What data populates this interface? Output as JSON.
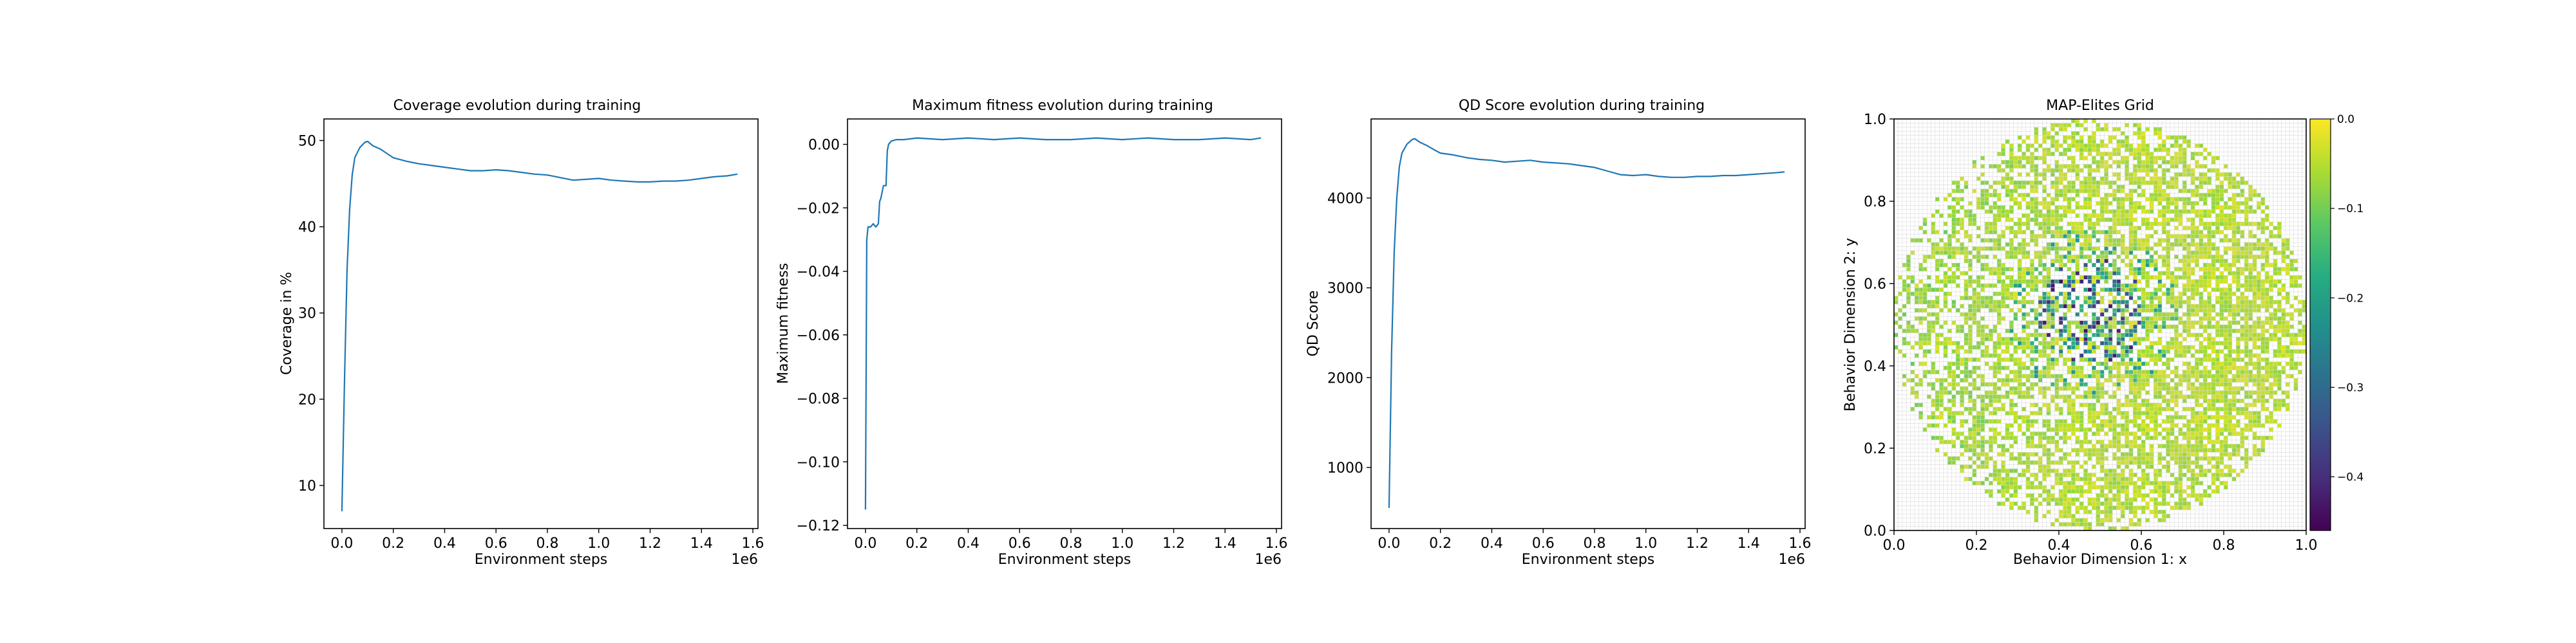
{
  "chart_data": [
    {
      "type": "line",
      "title": "Coverage evolution during training",
      "xlabel": "Environment steps",
      "ylabel": "Coverage in %",
      "x_offset_text": "1e6",
      "xlim": [
        -0.07,
        1.62
      ],
      "ylim": [
        5,
        52.5
      ],
      "xticks": [
        0.0,
        0.2,
        0.4,
        0.6,
        0.8,
        1.0,
        1.2,
        1.4,
        1.6
      ],
      "yticks": [
        10,
        20,
        30,
        40,
        50
      ],
      "series": [
        {
          "color": "#1f77b4",
          "x": [
            0.0,
            0.01,
            0.02,
            0.03,
            0.04,
            0.05,
            0.07,
            0.09,
            0.1,
            0.12,
            0.15,
            0.18,
            0.2,
            0.25,
            0.3,
            0.35,
            0.4,
            0.45,
            0.5,
            0.55,
            0.6,
            0.65,
            0.7,
            0.75,
            0.8,
            0.85,
            0.9,
            0.95,
            1.0,
            1.05,
            1.1,
            1.15,
            1.2,
            1.25,
            1.3,
            1.35,
            1.4,
            1.45,
            1.5,
            1.54
          ],
          "y": [
            7.0,
            22.0,
            35.0,
            42.0,
            46.0,
            48.0,
            49.2,
            49.8,
            49.9,
            49.4,
            49.0,
            48.4,
            48.0,
            47.6,
            47.3,
            47.1,
            46.9,
            46.7,
            46.5,
            46.5,
            46.6,
            46.5,
            46.3,
            46.1,
            46.0,
            45.7,
            45.4,
            45.5,
            45.6,
            45.4,
            45.3,
            45.2,
            45.2,
            45.3,
            45.3,
            45.4,
            45.6,
            45.8,
            45.9,
            46.1
          ]
        }
      ]
    },
    {
      "type": "line",
      "title": "Maximum fitness evolution during training",
      "xlabel": "Environment steps",
      "ylabel": "Maximum fitness",
      "x_offset_text": "1e6",
      "xlim": [
        -0.07,
        1.62
      ],
      "ylim": [
        -0.121,
        0.008
      ],
      "xticks": [
        0.0,
        0.2,
        0.4,
        0.6,
        0.8,
        1.0,
        1.2,
        1.4,
        1.6
      ],
      "yticks": [
        -0.12,
        -0.1,
        -0.08,
        -0.06,
        -0.04,
        -0.02,
        0.0
      ],
      "ytick_labels": [
        "−0.12",
        "−0.10",
        "−0.08",
        "−0.06",
        "−0.04",
        "−0.02",
        "0.00"
      ],
      "series": [
        {
          "color": "#1f77b4",
          "x": [
            0.0,
            0.005,
            0.01,
            0.02,
            0.03,
            0.04,
            0.05,
            0.055,
            0.06,
            0.07,
            0.08,
            0.085,
            0.09,
            0.1,
            0.12,
            0.15,
            0.2,
            0.3,
            0.4,
            0.5,
            0.6,
            0.7,
            0.8,
            0.9,
            1.0,
            1.1,
            1.2,
            1.3,
            1.4,
            1.5,
            1.54
          ],
          "y": [
            -0.115,
            -0.03,
            -0.026,
            -0.026,
            -0.025,
            -0.026,
            -0.025,
            -0.018,
            -0.017,
            -0.013,
            -0.013,
            -0.002,
            0.0,
            0.001,
            0.0015,
            0.0015,
            0.002,
            0.0015,
            0.002,
            0.0015,
            0.002,
            0.0015,
            0.0015,
            0.002,
            0.0015,
            0.002,
            0.0015,
            0.0015,
            0.002,
            0.0015,
            0.002
          ]
        }
      ]
    },
    {
      "type": "line",
      "title": "QD Score evolution during training",
      "xlabel": "Environment steps",
      "ylabel": "QD Score",
      "x_offset_text": "1e6",
      "xlim": [
        -0.07,
        1.62
      ],
      "ylim": [
        320,
        4880
      ],
      "xticks": [
        0.0,
        0.2,
        0.4,
        0.6,
        0.8,
        1.0,
        1.2,
        1.4,
        1.6
      ],
      "yticks": [
        1000,
        2000,
        3000,
        4000
      ],
      "series": [
        {
          "color": "#1f77b4",
          "x": [
            0.0,
            0.01,
            0.02,
            0.03,
            0.04,
            0.05,
            0.07,
            0.09,
            0.1,
            0.12,
            0.15,
            0.18,
            0.2,
            0.25,
            0.3,
            0.35,
            0.4,
            0.45,
            0.5,
            0.55,
            0.6,
            0.65,
            0.7,
            0.75,
            0.8,
            0.85,
            0.9,
            0.95,
            1.0,
            1.05,
            1.1,
            1.15,
            1.2,
            1.25,
            1.3,
            1.35,
            1.4,
            1.45,
            1.5,
            1.54
          ],
          "y": [
            550,
            2300,
            3400,
            4000,
            4350,
            4500,
            4600,
            4650,
            4660,
            4620,
            4580,
            4530,
            4500,
            4480,
            4450,
            4430,
            4420,
            4400,
            4410,
            4420,
            4400,
            4390,
            4380,
            4360,
            4340,
            4300,
            4260,
            4250,
            4260,
            4240,
            4230,
            4230,
            4240,
            4240,
            4250,
            4250,
            4260,
            4270,
            4280,
            4290
          ]
        }
      ]
    },
    {
      "type": "heatmap",
      "title": "MAP-Elites Grid",
      "xlabel": "Behavior Dimension 1: x",
      "ylabel": "Behavior Dimension 2: y",
      "xlim": [
        0.0,
        1.0
      ],
      "ylim": [
        0.0,
        1.0
      ],
      "xticks": [
        0.0,
        0.2,
        0.4,
        0.6,
        0.8,
        1.0
      ],
      "yticks": [
        0.0,
        0.2,
        0.4,
        0.6,
        0.8,
        1.0
      ],
      "grid": true,
      "grid_cells": 100,
      "colormap": "viridis",
      "colorbar": {
        "vmin": -0.46,
        "vmax": 0.0,
        "ticks": [
          0.0,
          -0.1,
          -0.2,
          -0.3,
          -0.4
        ],
        "tick_labels": [
          "0.0",
          "−0.1",
          "−0.2",
          "−0.3",
          "−0.4"
        ]
      },
      "filled_region": {
        "center": [
          0.5,
          0.5
        ],
        "radius": 0.5,
        "fill_fraction": 0.62
      },
      "low_fitness_cluster": {
        "center": [
          0.48,
          0.53
        ],
        "radius": 0.13
      }
    }
  ]
}
